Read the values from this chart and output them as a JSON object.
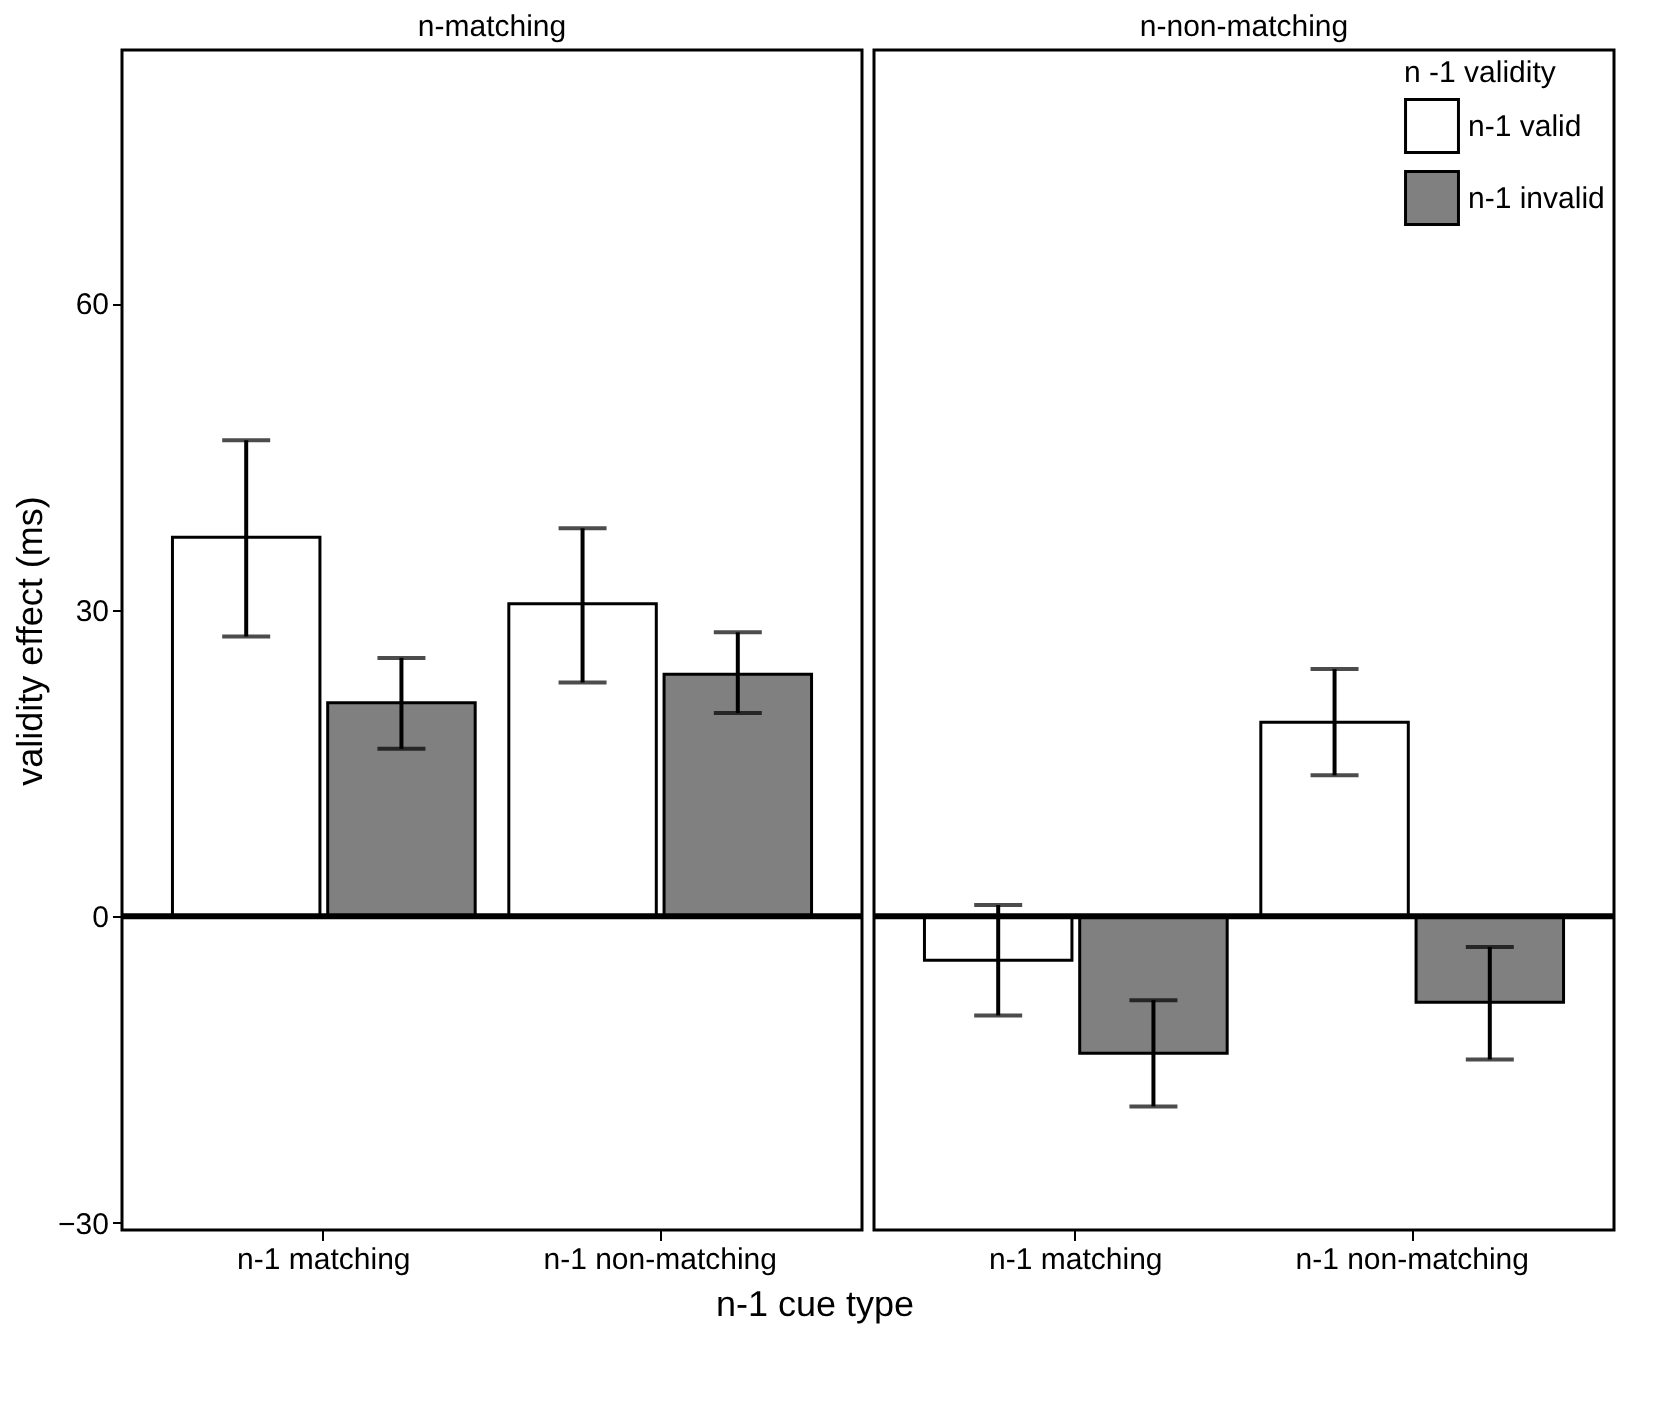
{
  "chart_data": [
    {
      "type": "bar",
      "title": "n-matching",
      "ylabel": "validity effect (ms)",
      "xlabel": "n-1 cue type",
      "categories": [
        "n-1 matching",
        "n-1 non-matching"
      ],
      "ylim": [
        -30.7,
        84.8
      ],
      "yticks": [
        -30,
        0,
        30,
        60
      ],
      "grid": false,
      "legend": false,
      "series": [
        {
          "color": "#ffffff",
          "values": [
            37.1,
            30.6
          ],
          "errors": [
            [
              27.4,
              46.6
            ],
            [
              22.9,
              38.0
            ]
          ]
        },
        {
          "color": "#808080",
          "values": [
            20.9,
            23.7
          ],
          "errors": [
            [
              16.4,
              25.3
            ],
            [
              19.9,
              27.8
            ]
          ]
        }
      ],
      "ref_lines": [
        {
          "axis": "y",
          "value": 0,
          "color": "#000000"
        }
      ]
    },
    {
      "type": "bar",
      "title": "n-non-matching",
      "legend_title": "n -1 validity",
      "categories": [
        "n-1 matching",
        "n-1 non-matching"
      ],
      "ylim": [
        -30.7,
        84.8
      ],
      "yticks": [
        -30,
        0,
        30,
        60
      ],
      "grid": false,
      "legend": "top right",
      "tick_labels": "x",
      "series": [
        {
          "name": "n-1 valid",
          "color": "#ffffff",
          "values": [
            -4.3,
            19.0
          ],
          "errors": [
            [
              -9.7,
              1.1
            ],
            [
              13.8,
              24.2
            ]
          ]
        },
        {
          "name": "n-1 invalid",
          "color": "#808080",
          "values": [
            -13.4,
            -8.4
          ],
          "errors": [
            [
              -18.6,
              -8.2
            ],
            [
              -14.0,
              -3.0
            ]
          ]
        }
      ],
      "ref_lines": [
        {
          "axis": "y",
          "value": 0,
          "color": "#000000"
        }
      ]
    }
  ]
}
